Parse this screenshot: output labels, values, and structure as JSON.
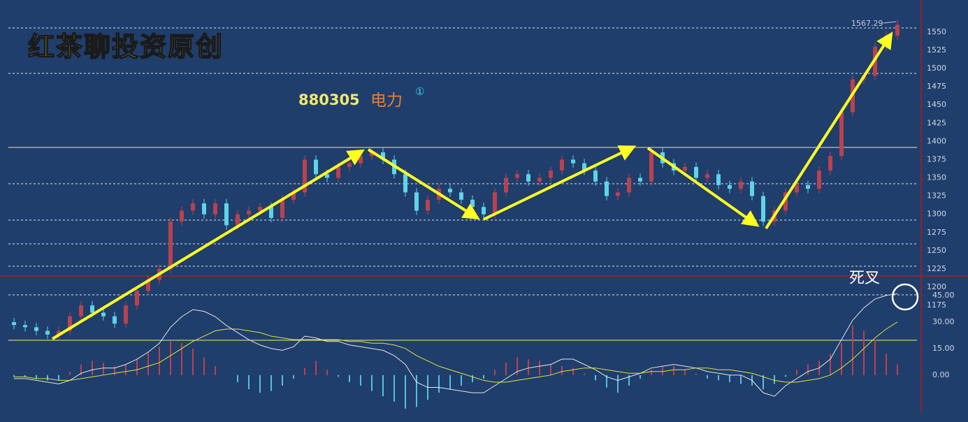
{
  "chart_data": [
    {
      "type": "candlestick",
      "watermark": "红茶聊投资原创",
      "title": "880305",
      "subtitle": "电力",
      "badge": "①",
      "high_label": "1567.29",
      "up_color": "#b8434f",
      "down_color": "#5fd3e8",
      "ylim": [
        1015,
        1594
      ],
      "yticks": [
        1175,
        1200,
        1225,
        1250,
        1275,
        1300,
        1325,
        1350,
        1375,
        1400,
        1425,
        1450,
        1475,
        1500,
        1525,
        1550
      ],
      "open": [
        1152,
        1148,
        1145,
        1140,
        1135,
        1140,
        1160,
        1175,
        1165,
        1160,
        1150,
        1175,
        1195,
        1210,
        1225,
        1290,
        1305,
        1315,
        1300,
        1315,
        1285,
        1300,
        1305,
        1310,
        1295,
        1320,
        1330,
        1375,
        1355,
        1350,
        1365,
        1370,
        1380,
        1385,
        1375,
        1355,
        1330,
        1305,
        1320,
        1335,
        1330,
        1320,
        1310,
        1300,
        1330,
        1350,
        1355,
        1345,
        1350,
        1360,
        1375,
        1370,
        1360,
        1345,
        1325,
        1330,
        1350,
        1345,
        1385,
        1370,
        1360,
        1365,
        1350,
        1355,
        1340,
        1335,
        1345,
        1325,
        1290,
        1305,
        1330,
        1340,
        1335,
        1360,
        1380,
        1440,
        1485,
        1490,
        1530,
        1545
      ],
      "high": [
        1158,
        1154,
        1151,
        1146,
        1146,
        1166,
        1181,
        1181,
        1171,
        1166,
        1181,
        1201,
        1216,
        1231,
        1296,
        1311,
        1321,
        1321,
        1321,
        1321,
        1306,
        1311,
        1316,
        1316,
        1326,
        1336,
        1381,
        1381,
        1361,
        1371,
        1376,
        1386,
        1391,
        1391,
        1381,
        1361,
        1336,
        1326,
        1341,
        1341,
        1336,
        1326,
        1316,
        1336,
        1356,
        1361,
        1361,
        1356,
        1366,
        1381,
        1381,
        1376,
        1366,
        1351,
        1336,
        1356,
        1356,
        1391,
        1391,
        1376,
        1371,
        1371,
        1361,
        1361,
        1346,
        1351,
        1351,
        1331,
        1311,
        1336,
        1346,
        1346,
        1366,
        1386,
        1446,
        1491,
        1496,
        1536,
        1551,
        1567.29
      ],
      "low": [
        1142,
        1139,
        1134,
        1129,
        1129,
        1134,
        1154,
        1159,
        1154,
        1144,
        1144,
        1169,
        1189,
        1204,
        1219,
        1284,
        1299,
        1294,
        1294,
        1279,
        1279,
        1294,
        1299,
        1289,
        1289,
        1314,
        1324,
        1349,
        1344,
        1344,
        1359,
        1364,
        1374,
        1369,
        1349,
        1324,
        1299,
        1299,
        1314,
        1324,
        1314,
        1304,
        1294,
        1294,
        1324,
        1344,
        1339,
        1339,
        1344,
        1354,
        1364,
        1354,
        1339,
        1319,
        1319,
        1324,
        1339,
        1339,
        1364,
        1354,
        1354,
        1344,
        1344,
        1334,
        1329,
        1329,
        1319,
        1284,
        1284,
        1299,
        1324,
        1329,
        1329,
        1354,
        1374,
        1434,
        1479,
        1484,
        1524,
        1539
      ],
      "close": [
        1148,
        1145,
        1140,
        1135,
        1140,
        1160,
        1175,
        1165,
        1160,
        1150,
        1175,
        1195,
        1210,
        1225,
        1290,
        1305,
        1315,
        1300,
        1315,
        1285,
        1300,
        1305,
        1310,
        1295,
        1320,
        1330,
        1375,
        1355,
        1350,
        1365,
        1370,
        1380,
        1385,
        1375,
        1355,
        1330,
        1305,
        1320,
        1335,
        1330,
        1320,
        1310,
        1300,
        1330,
        1350,
        1355,
        1345,
        1350,
        1360,
        1375,
        1370,
        1360,
        1345,
        1325,
        1330,
        1350,
        1345,
        1385,
        1370,
        1360,
        1365,
        1350,
        1355,
        1340,
        1335,
        1345,
        1325,
        1290,
        1305,
        1330,
        1340,
        1335,
        1360,
        1380,
        1440,
        1485,
        1490,
        1530,
        1545,
        1560
      ]
    },
    {
      "type": "macd",
      "annotation": "死叉",
      "ylim": [
        -21,
        56
      ],
      "yticks": [
        {
          "value": 0,
          "label": "0.00"
        },
        {
          "value": 15,
          "label": "15.00"
        },
        {
          "value": 30,
          "label": "30.00"
        },
        {
          "value": 45,
          "label": "45.00"
        }
      ],
      "lines": [
        {
          "color": "#e6e6e6",
          "values": [
            -2,
            -2,
            -3,
            -4,
            -5,
            -3,
            1,
            3,
            4,
            4,
            6,
            9,
            13,
            18,
            27,
            33,
            37,
            36,
            33,
            28,
            24,
            20,
            17,
            15,
            14,
            16,
            22,
            21,
            19,
            19,
            17,
            16,
            15,
            14,
            11,
            6,
            -4,
            -7,
            -7,
            -8,
            -9,
            -10,
            -10,
            -6,
            -2,
            2,
            4,
            5,
            6,
            9,
            9,
            6,
            3,
            -1,
            -3,
            -1,
            1,
            4,
            5,
            6,
            5,
            4,
            2,
            1,
            0,
            0,
            -3,
            -10,
            -12,
            -6,
            -2,
            2,
            4,
            9,
            20,
            31,
            38,
            43,
            45,
            46
          ]
        },
        {
          "color": "#e2e23c",
          "values": [
            -1,
            -1,
            -2,
            -2,
            -3,
            -3,
            -2,
            -1,
            0,
            1,
            2,
            3,
            5,
            7,
            11,
            15,
            19,
            22,
            25,
            26,
            26,
            25,
            24,
            22,
            21,
            20,
            20,
            20,
            20,
            20,
            19,
            19,
            18,
            18,
            17,
            15,
            11,
            8,
            5,
            3,
            1,
            -1,
            -3,
            -4,
            -4,
            -3,
            -2,
            -1,
            0,
            2,
            3,
            4,
            4,
            3,
            2,
            1,
            1,
            2,
            2,
            3,
            3,
            4,
            4,
            3,
            3,
            2,
            1,
            -1,
            -3,
            -4,
            -4,
            -3,
            -2,
            0,
            4,
            9,
            15,
            21,
            26,
            30
          ]
        }
      ],
      "bars": {
        "up_color": "#c0404c",
        "down_color": "#4fc3df",
        "values": [
          -1,
          -1,
          -2,
          -3,
          -3,
          2,
          6,
          8,
          7,
          5,
          6,
          9,
          13,
          16,
          19,
          18,
          15,
          10,
          5,
          0,
          -4,
          -8,
          -10,
          -9,
          -6,
          -2,
          4,
          8,
          3,
          -1,
          -4,
          -6,
          -9,
          -12,
          -15,
          -19,
          -18,
          -14,
          -10,
          -8,
          -6,
          -4,
          -2,
          3,
          7,
          10,
          9,
          8,
          6,
          5,
          4,
          1,
          -3,
          -7,
          -10,
          -6,
          -2,
          3,
          5,
          5,
          3,
          1,
          -2,
          -3,
          -4,
          -5,
          -6,
          -8,
          -5,
          -1,
          3,
          6,
          8,
          12,
          18,
          28,
          25,
          20,
          12,
          6
        ]
      }
    }
  ]
}
